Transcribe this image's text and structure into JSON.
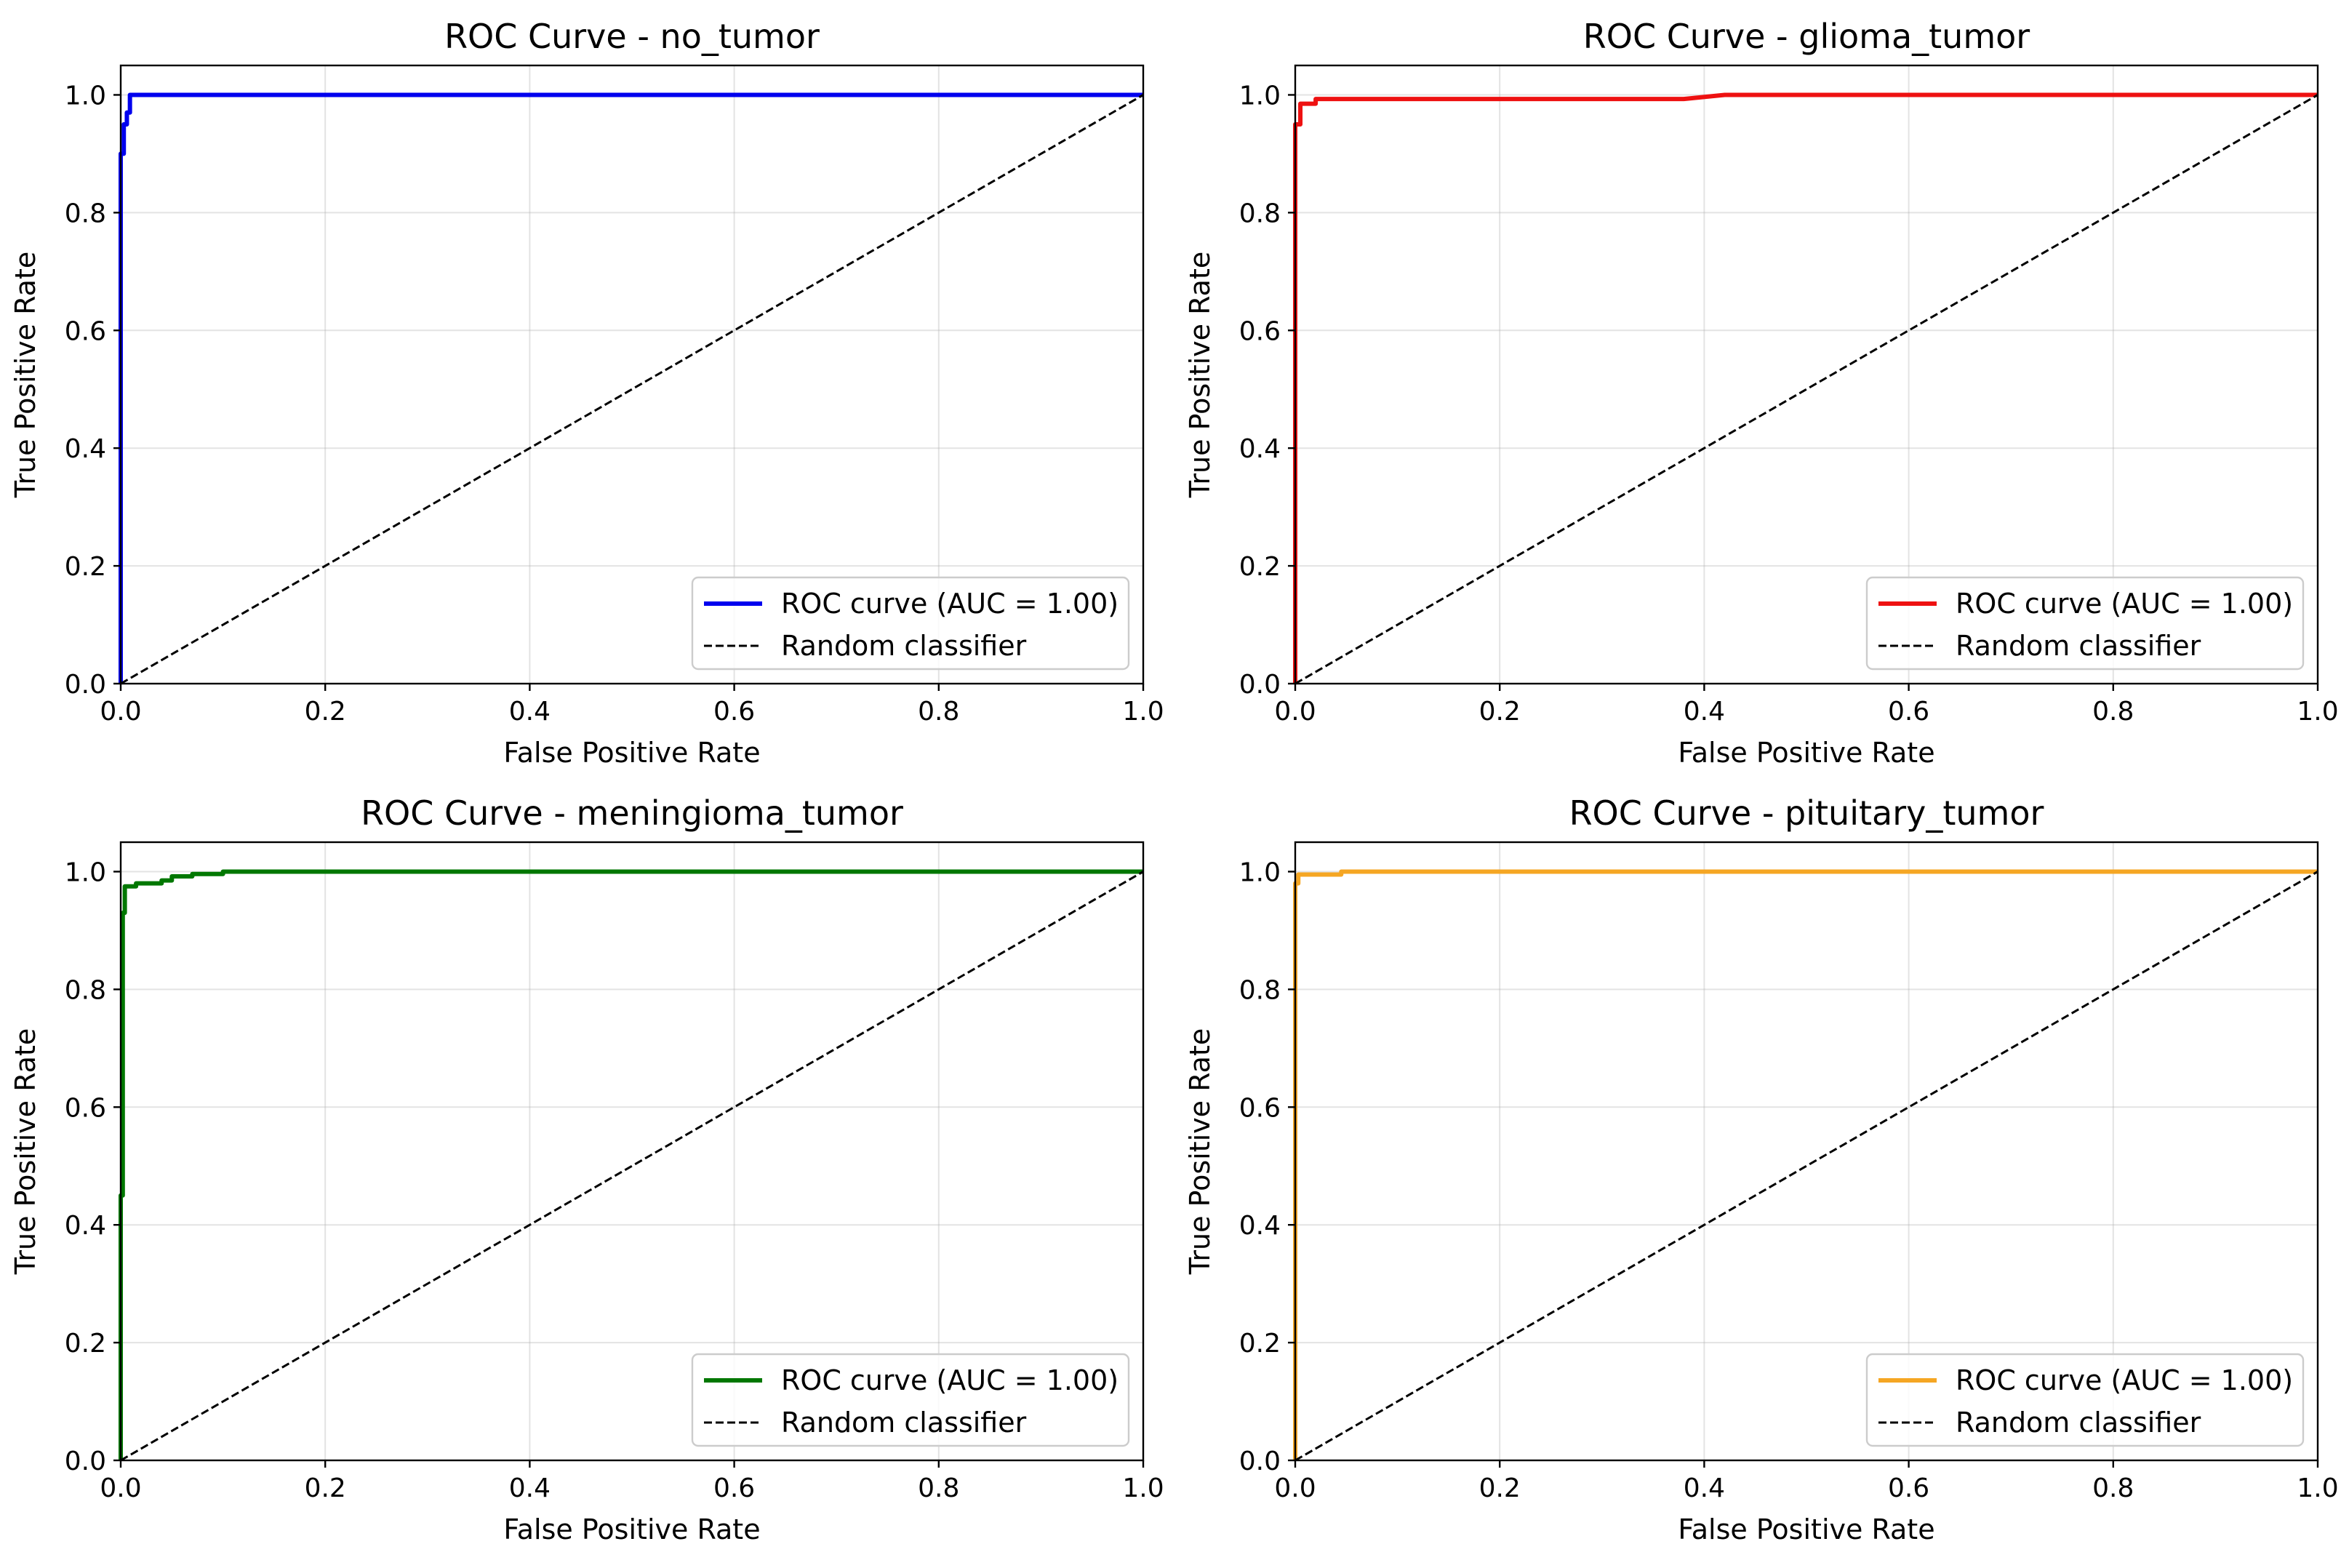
{
  "colors": {
    "no_tumor": "#0000ee",
    "glioma_tumor": "#ee1111",
    "meningioma_tumor": "#007700",
    "pituitary_tumor": "#f5a623",
    "random": "#000000",
    "grid": "#b0b0b0"
  },
  "chart_data": [
    {
      "type": "line",
      "key": "no_tumor",
      "title": "ROC Curve - no_tumor",
      "xlabel": "False Positive Rate",
      "ylabel": "True Positive Rate",
      "xlim": [
        0.0,
        1.0
      ],
      "ylim": [
        0.0,
        1.05
      ],
      "xticks": [
        "0.0",
        "0.2",
        "0.4",
        "0.6",
        "0.8",
        "1.0"
      ],
      "yticks": [
        "0.0",
        "0.2",
        "0.4",
        "0.6",
        "0.8",
        "1.0"
      ],
      "grid": true,
      "legend_position": "lower-right",
      "series": [
        {
          "name": "ROC curve (AUC = 1.00)",
          "color_key": "no_tumor",
          "x": [
            0.0,
            0.0,
            0.003,
            0.003,
            0.006,
            0.006,
            0.009,
            0.009,
            1.0
          ],
          "y": [
            0.0,
            0.9,
            0.9,
            0.95,
            0.95,
            0.97,
            0.97,
            1.0,
            1.0
          ]
        },
        {
          "name": "Random classifier",
          "color_key": "random",
          "dashed": true,
          "x": [
            0.0,
            1.0
          ],
          "y": [
            0.0,
            1.0
          ]
        }
      ]
    },
    {
      "type": "line",
      "key": "glioma_tumor",
      "title": "ROC Curve - glioma_tumor",
      "xlabel": "False Positive Rate",
      "ylabel": "True Positive Rate",
      "xlim": [
        0.0,
        1.0
      ],
      "ylim": [
        0.0,
        1.05
      ],
      "xticks": [
        "0.0",
        "0.2",
        "0.4",
        "0.6",
        "0.8",
        "1.0"
      ],
      "yticks": [
        "0.0",
        "0.2",
        "0.4",
        "0.6",
        "0.8",
        "1.0"
      ],
      "grid": true,
      "legend_position": "lower-right",
      "series": [
        {
          "name": "ROC curve (AUC = 1.00)",
          "color_key": "glioma_tumor",
          "x": [
            0.0,
            0.0,
            0.005,
            0.005,
            0.02,
            0.02,
            0.38,
            0.42,
            1.0
          ],
          "y": [
            0.0,
            0.95,
            0.95,
            0.985,
            0.985,
            0.993,
            0.993,
            1.0,
            1.0
          ]
        },
        {
          "name": "Random classifier",
          "color_key": "random",
          "dashed": true,
          "x": [
            0.0,
            1.0
          ],
          "y": [
            0.0,
            1.0
          ]
        }
      ]
    },
    {
      "type": "line",
      "key": "meningioma_tumor",
      "title": "ROC Curve - meningioma_tumor",
      "xlabel": "False Positive Rate",
      "ylabel": "True Positive Rate",
      "xlim": [
        0.0,
        1.0
      ],
      "ylim": [
        0.0,
        1.05
      ],
      "xticks": [
        "0.0",
        "0.2",
        "0.4",
        "0.6",
        "0.8",
        "1.0"
      ],
      "yticks": [
        "0.0",
        "0.2",
        "0.4",
        "0.6",
        "0.8",
        "1.0"
      ],
      "grid": true,
      "legend_position": "lower-right",
      "series": [
        {
          "name": "ROC curve (AUC = 1.00)",
          "color_key": "meningioma_tumor",
          "x": [
            0.0,
            0.0,
            0.002,
            0.002,
            0.004,
            0.004,
            0.015,
            0.015,
            0.04,
            0.04,
            0.05,
            0.05,
            0.07,
            0.07,
            0.1,
            0.1,
            1.0
          ],
          "y": [
            0.0,
            0.45,
            0.45,
            0.93,
            0.93,
            0.975,
            0.975,
            0.98,
            0.98,
            0.985,
            0.985,
            0.992,
            0.992,
            0.996,
            0.996,
            1.0,
            1.0
          ]
        },
        {
          "name": "Random classifier",
          "color_key": "random",
          "dashed": true,
          "x": [
            0.0,
            1.0
          ],
          "y": [
            0.0,
            1.0
          ]
        }
      ]
    },
    {
      "type": "line",
      "key": "pituitary_tumor",
      "title": "ROC Curve - pituitary_tumor",
      "xlabel": "False Positive Rate",
      "ylabel": "True Positive Rate",
      "xlim": [
        0.0,
        1.0
      ],
      "ylim": [
        0.0,
        1.05
      ],
      "xticks": [
        "0.0",
        "0.2",
        "0.4",
        "0.6",
        "0.8",
        "1.0"
      ],
      "yticks": [
        "0.0",
        "0.2",
        "0.4",
        "0.6",
        "0.8",
        "1.0"
      ],
      "grid": true,
      "legend_position": "lower-right",
      "series": [
        {
          "name": "ROC curve (AUC = 1.00)",
          "color_key": "pituitary_tumor",
          "x": [
            0.0,
            0.0,
            0.003,
            0.003,
            0.045,
            0.045,
            1.0
          ],
          "y": [
            0.0,
            0.98,
            0.98,
            0.995,
            0.995,
            1.0,
            1.0
          ]
        },
        {
          "name": "Random classifier",
          "color_key": "random",
          "dashed": true,
          "x": [
            0.0,
            1.0
          ],
          "y": [
            0.0,
            1.0
          ]
        }
      ]
    }
  ]
}
